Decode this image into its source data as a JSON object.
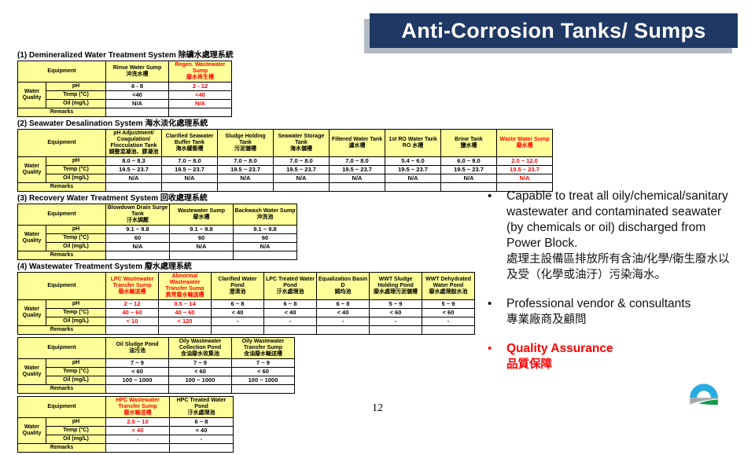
{
  "title": "Anti-Corrosion Tanks/ Sumps",
  "page_number": "12",
  "colors": {
    "banner_navy": "#1f3864",
    "banner_shadow_gray": "#b4bac3",
    "table_header_yellow": "#ffff99",
    "alert_red": "#ff0000"
  },
  "labels": {
    "equipment": "Equipment",
    "water_quality": "Water Quality",
    "ph": "pH",
    "temp": "Temp (°C)",
    "oil": "Oil (mg/L)",
    "remarks": "Remarks"
  },
  "tables": [
    {
      "heading": "(1) Demineralized Water Treatment System 除礦水處理系統",
      "columns": [
        {
          "name_en": "Rinse Water Sump",
          "name_zh": "沖洗水槽",
          "red_header": false,
          "red_values": false,
          "ph": "6 - 8",
          "temp": "<40",
          "oil": "N/A"
        },
        {
          "name_en": "Regen. Wastewater Sump",
          "name_zh": "廢水再生槽",
          "red_header": true,
          "red_values": true,
          "ph": "2 - 12",
          "temp": "<40",
          "oil": "N/A"
        }
      ]
    },
    {
      "heading": "(2) Seawater Desalination System 海水淡化處理系統",
      "columns": [
        {
          "name_en": "pH Adjustment/ Coagulation/ Flocculation Tank",
          "name_zh": "調整混凝池、膠凝池",
          "red_header": false,
          "red_values": false,
          "ph": "8.0 ~ 8.3",
          "temp": "19.5 ~ 23.7",
          "oil": "N/A"
        },
        {
          "name_en": "Clarified Seawater Buffer Tank",
          "name_zh": "海水緩衝槽",
          "red_header": false,
          "red_values": false,
          "ph": "7.0 ~ 8.0",
          "temp": "19.5 ~ 23.7",
          "oil": "N/A"
        },
        {
          "name_en": "Sludge Holding Tank",
          "name_zh": "污泥儲槽",
          "red_header": false,
          "red_values": false,
          "ph": "7.0 ~ 8.0",
          "temp": "19.5 ~ 23.7",
          "oil": "N/A"
        },
        {
          "name_en": "Seawater Storage Tank",
          "name_zh": "海水儲槽",
          "red_header": false,
          "red_values": false,
          "ph": "7.0 ~ 8.0",
          "temp": "19.5 ~ 23.7",
          "oil": "N/A"
        },
        {
          "name_en": "Filtered Water Tank",
          "name_zh": "濾水槽",
          "red_header": false,
          "red_values": false,
          "ph": "7.0 ~ 8.0",
          "temp": "19.5 ~ 23.7",
          "oil": "N/A"
        },
        {
          "name_en": "1st RO Water Tank",
          "name_zh": "RO 水槽",
          "red_header": false,
          "red_values": false,
          "ph": "5.4 ~ 6.0",
          "temp": "19.5 ~ 23.7",
          "oil": "N/A"
        },
        {
          "name_en": "Brine Tank",
          "name_zh": "鹽水槽",
          "red_header": false,
          "red_values": false,
          "ph": "6.0 ~ 9.0",
          "temp": "19.5 ~ 23.7",
          "oil": "N/A"
        },
        {
          "name_en": "Waste Water Sump",
          "name_zh": "廢水槽",
          "red_header": true,
          "red_values": true,
          "ph": "2.0 ~ 12.0",
          "temp": "19.5 ~ 23.7",
          "oil": "N/A"
        }
      ]
    },
    {
      "heading": "(3) Recovery Water Treatment System 回收處理系統",
      "columns": [
        {
          "name_en": "Blowdown Drain Surge Tank",
          "name_zh": "汙水調壓",
          "red_header": false,
          "red_values": false,
          "ph": "9.1 ~ 9.8",
          "temp": "60",
          "oil": "N/A"
        },
        {
          "name_en": "Wastewater Sump",
          "name_zh": "廢水槽",
          "red_header": false,
          "red_values": false,
          "ph": "9.1 ~ 9.8",
          "temp": "60",
          "oil": "N/A"
        },
        {
          "name_en": "Backwash Water Sump",
          "name_zh": "沖洗池",
          "red_header": false,
          "red_values": false,
          "ph": "9.1 ~ 9.8",
          "temp": "60",
          "oil": "N/A"
        }
      ]
    },
    {
      "heading": "(4) Wastewater Treatment System 廢水處理系統",
      "columns": [
        {
          "name_en": "LPC Wastewater Transfer Sump",
          "name_zh": "廢水輸送槽",
          "red_header": true,
          "red_values": true,
          "ph": "2 ~ 12",
          "temp": "40 ~ 60",
          "oil": "< 10"
        },
        {
          "name_en": "Abnormal Wastewater Transfer Sump",
          "name_zh": "異常廢水輸送槽",
          "red_header": true,
          "red_values": true,
          "ph": "0.5 ~ 14",
          "temp": "40 ~ 60",
          "oil": "< 120"
        },
        {
          "name_en": "Clarified Water Pond",
          "name_zh": "澄清池",
          "red_header": false,
          "red_values": false,
          "ph": "6 ~ 8",
          "temp": "< 40",
          "oil": "-"
        },
        {
          "name_en": "LPC Treated Water Pond",
          "name_zh": "汙水處理池",
          "red_header": false,
          "red_values": false,
          "ph": "6 ~ 8",
          "temp": "< 40",
          "oil": "-"
        },
        {
          "name_en": "Equalization Basin D",
          "name_zh": "調均池",
          "red_header": false,
          "red_values": false,
          "ph": "6 ~ 8",
          "temp": "< 40",
          "oil": "-"
        },
        {
          "name_en": "WWT Sludge Holding Pond",
          "name_zh": "廢水處理污泥儲槽",
          "red_header": false,
          "red_values": false,
          "ph": "5 ~ 9",
          "temp": "< 60",
          "oil": "-"
        },
        {
          "name_en": "WWT Dehydrated Water Pond",
          "name_zh": "廢水處理脫水池",
          "red_header": false,
          "red_values": false,
          "ph": "5 ~ 9",
          "temp": "< 60",
          "oil": "-"
        }
      ]
    },
    {
      "heading": null,
      "columns": [
        {
          "name_en": "Oil Sludge Pond",
          "name_zh": "油污池",
          "red_header": false,
          "red_values": false,
          "ph": "7 ~ 9",
          "temp": "< 60",
          "oil": "100 ~ 1000"
        },
        {
          "name_en": "Oily Wastewater Collection Pond",
          "name_zh": "含油廢水收集池",
          "red_header": false,
          "red_values": false,
          "ph": "7 ~ 9",
          "temp": "< 60",
          "oil": "100 ~ 1000"
        },
        {
          "name_en": "Oily Wastewater Transfer Sump",
          "name_zh": "含油廢水輸送槽",
          "red_header": false,
          "red_values": false,
          "ph": "7 ~ 9",
          "temp": "< 60",
          "oil": "100 ~ 1000"
        }
      ]
    },
    {
      "heading": null,
      "columns": [
        {
          "name_en": "HPC Wastewater Transfer Sump",
          "name_zh": "廢水輸送槽",
          "red_header": true,
          "red_values": true,
          "ph": "2.5 ~ 10",
          "temp": "< 40",
          "oil": "-"
        },
        {
          "name_en": "HPC Treated Water Pond",
          "name_zh": "汙水處理池",
          "red_header": false,
          "red_values": false,
          "ph": "6 ~ 8",
          "temp": "< 40",
          "oil": "-"
        }
      ]
    }
  ],
  "bullets": [
    {
      "en": "Capable to treat all oily/chemical/sanitary wastewater and contaminated seawater (by chemicals or oil) discharged from Power Block.",
      "zh": "處理主設備區排放所有含油/化學/衛生廢水以及受（化學或油汙）污染海水。",
      "red": false
    },
    {
      "en": "Professional vendor & consultants",
      "zh": "專業廠商及顧問",
      "red": false
    },
    {
      "en": "Quality Assurance",
      "zh": "品質保障",
      "red": true
    }
  ],
  "logo": {
    "name": "company-logo",
    "colors": {
      "blue": "#29abe2",
      "gray": "#a7a9ac",
      "green": "#0f9d49"
    }
  }
}
